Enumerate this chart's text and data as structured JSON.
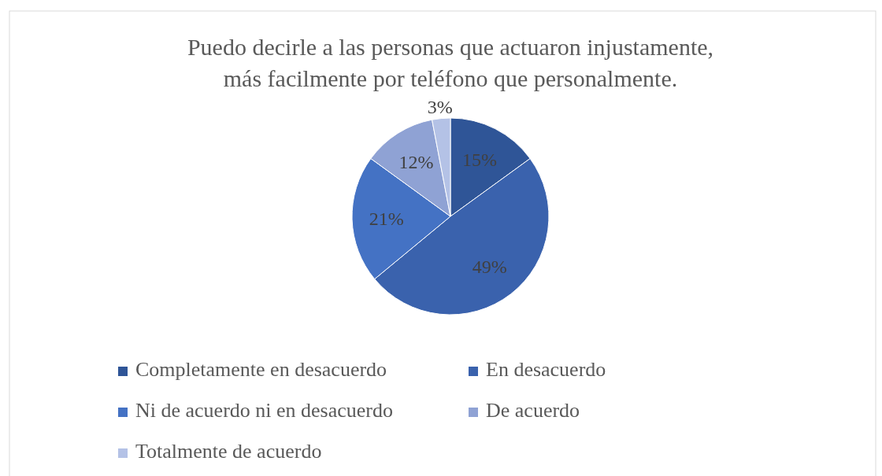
{
  "chart_data": {
    "type": "pie",
    "title": "Puedo decirle a las personas que actuaron injustamente,\nmás facilmente por teléfono que personalmente.",
    "categories": [
      "Completamente en desacuerdo",
      "En desacuerdo",
      "Ni de acuerdo ni en desacuerdo",
      "De acuerdo",
      "Totalmente de acuerdo"
    ],
    "values": [
      15,
      49,
      21,
      12,
      3
    ],
    "value_labels": [
      "15%",
      "49%",
      "21%",
      "12%",
      "3%"
    ],
    "colors": [
      "#2f5597",
      "#3a62ad",
      "#4472c4",
      "#8fa2d4",
      "#b4c2e6"
    ],
    "legend": "bottom"
  }
}
